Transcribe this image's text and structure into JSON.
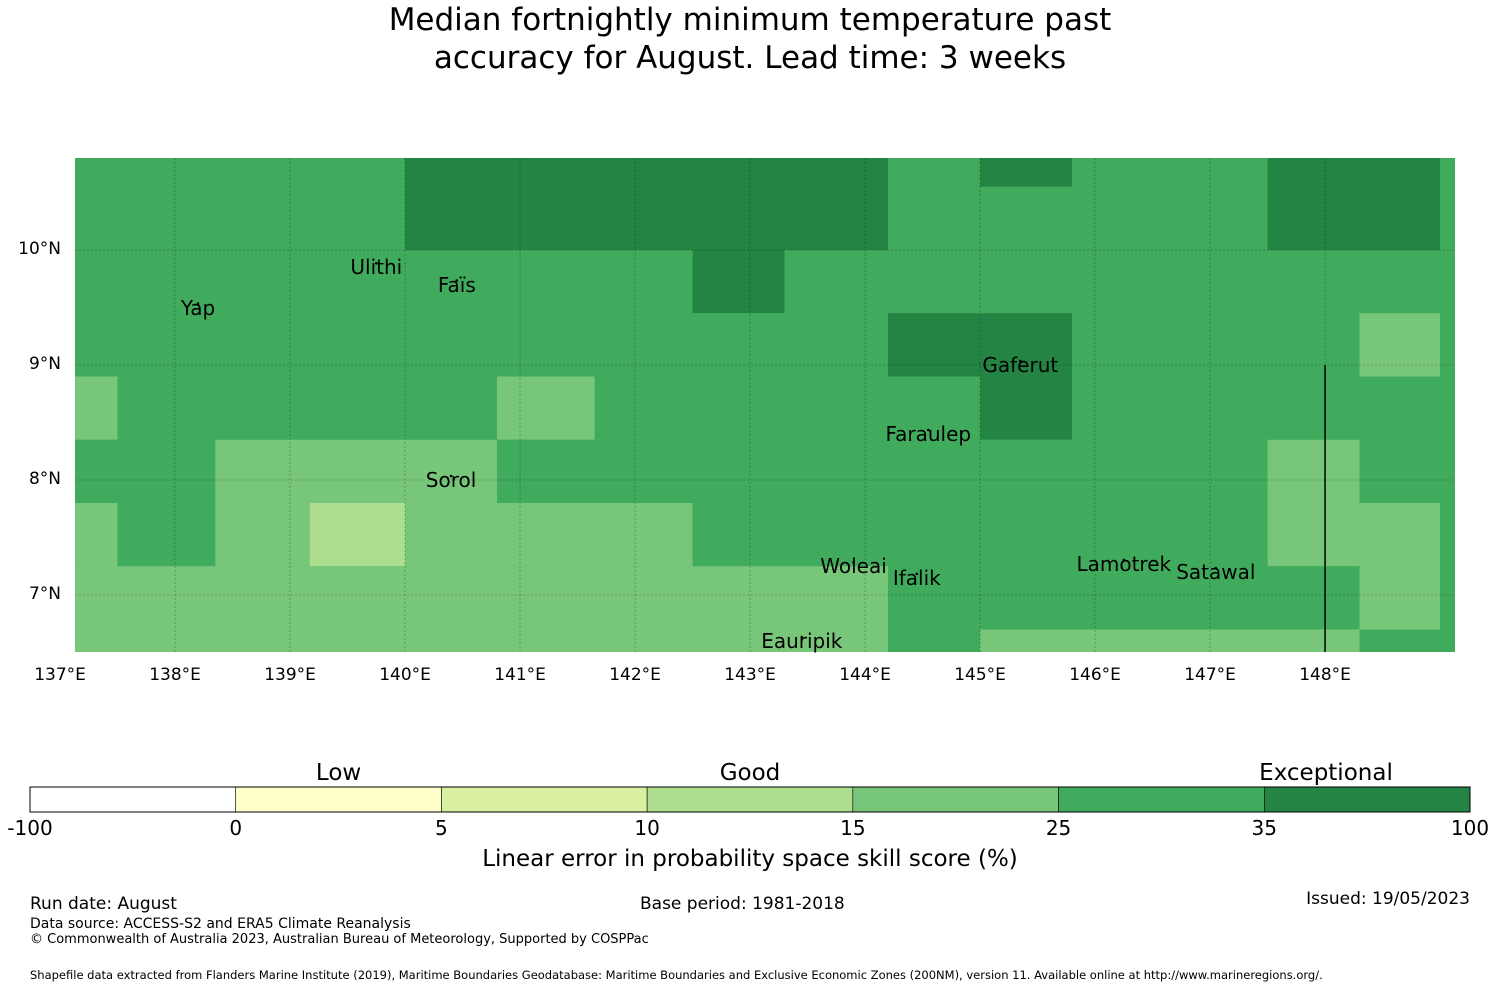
{
  "title_line1": "Median fortnightly minimum temperature past",
  "title_line2": "accuracy for August. Lead time: 3 weeks",
  "colors": {
    "c1": "#addd8e",
    "c2": "#78c679",
    "c3": "#41ab5d",
    "c4": "#238443",
    "gridline": "#000000",
    "ocean": "#ffffff"
  },
  "map": {
    "lon_range": [
      137.0,
      149.0
    ],
    "lat_range": [
      6.5,
      10.8
    ],
    "lat_labels": [
      "10°N",
      "9°N",
      "8°N",
      "7°N"
    ],
    "lon_labels": [
      "137°E",
      "138°E",
      "139°E",
      "140°E",
      "141°E",
      "142°E",
      "143°E",
      "144°E",
      "145°E",
      "146°E",
      "147°E",
      "148°E"
    ],
    "grid_lon": [
      137,
      138,
      139,
      140,
      141,
      142,
      143,
      144,
      145,
      146,
      147,
      148
    ],
    "grid_lat": [
      10,
      9,
      8,
      7
    ],
    "cells_note": "skill category per grid cell: 1 = 10–15%, 2 = 15–25%, 3 = 25–35%, 4 = 35–100%",
    "cells": [
      {
        "lon0": 137.0,
        "lon1": 140.0,
        "lat0": 10.0,
        "lat1": 10.8,
        "cat": 3
      },
      {
        "lon0": 140.0,
        "lon1": 144.2,
        "lat0": 10.0,
        "lat1": 10.8,
        "cat": 4
      },
      {
        "lon0": 144.2,
        "lon1": 145.0,
        "lat0": 10.0,
        "lat1": 10.8,
        "cat": 3
      },
      {
        "lon0": 145.0,
        "lon1": 145.8,
        "lat0": 10.55,
        "lat1": 10.8,
        "cat": 4
      },
      {
        "lon0": 145.0,
        "lon1": 147.5,
        "lat0": 10.0,
        "lat1": 10.55,
        "cat": 3
      },
      {
        "lon0": 145.8,
        "lon1": 147.5,
        "lat0": 10.55,
        "lat1": 10.8,
        "cat": 3
      },
      {
        "lon0": 147.5,
        "lon1": 149.0,
        "lat0": 10.0,
        "lat1": 10.8,
        "cat": 4
      },
      {
        "lon0": 137.0,
        "lon1": 142.5,
        "lat0": 9.45,
        "lat1": 10.0,
        "cat": 3
      },
      {
        "lon0": 142.5,
        "lon1": 143.3,
        "lat0": 9.45,
        "lat1": 10.0,
        "cat": 4
      },
      {
        "lon0": 143.3,
        "lon1": 149.0,
        "lat0": 9.45,
        "lat1": 10.0,
        "cat": 3
      },
      {
        "lon0": 137.0,
        "lon1": 144.2,
        "lat0": 8.9,
        "lat1": 9.45,
        "cat": 3
      },
      {
        "lon0": 144.2,
        "lon1": 145.8,
        "lat0": 8.9,
        "lat1": 9.45,
        "cat": 4
      },
      {
        "lon0": 145.8,
        "lon1": 148.3,
        "lat0": 8.9,
        "lat1": 9.45,
        "cat": 3
      },
      {
        "lon0": 148.3,
        "lon1": 149.0,
        "lat0": 8.9,
        "lat1": 9.45,
        "cat": 2
      },
      {
        "lon0": 137.0,
        "lon1": 137.5,
        "lat0": 8.35,
        "lat1": 8.9,
        "cat": 2
      },
      {
        "lon0": 137.5,
        "lon1": 140.8,
        "lat0": 8.35,
        "lat1": 8.9,
        "cat": 3
      },
      {
        "lon0": 140.8,
        "lon1": 141.65,
        "lat0": 8.35,
        "lat1": 8.9,
        "cat": 2
      },
      {
        "lon0": 141.65,
        "lon1": 145.0,
        "lat0": 8.35,
        "lat1": 8.9,
        "cat": 3
      },
      {
        "lon0": 145.0,
        "lon1": 145.8,
        "lat0": 8.35,
        "lat1": 8.9,
        "cat": 4
      },
      {
        "lon0": 145.8,
        "lon1": 149.0,
        "lat0": 8.35,
        "lat1": 8.9,
        "cat": 3
      },
      {
        "lon0": 137.0,
        "lon1": 138.35,
        "lat0": 7.8,
        "lat1": 8.35,
        "cat": 3
      },
      {
        "lon0": 138.35,
        "lon1": 140.8,
        "lat0": 7.8,
        "lat1": 8.35,
        "cat": 2
      },
      {
        "lon0": 140.8,
        "lon1": 147.5,
        "lat0": 7.8,
        "lat1": 8.35,
        "cat": 3
      },
      {
        "lon0": 147.5,
        "lon1": 148.3,
        "lat0": 7.8,
        "lat1": 8.35,
        "cat": 2
      },
      {
        "lon0": 148.3,
        "lon1": 149.0,
        "lat0": 7.8,
        "lat1": 8.35,
        "cat": 3
      },
      {
        "lon0": 137.0,
        "lon1": 137.5,
        "lat0": 7.25,
        "lat1": 7.8,
        "cat": 2
      },
      {
        "lon0": 137.5,
        "lon1": 138.35,
        "lat0": 7.25,
        "lat1": 7.8,
        "cat": 3
      },
      {
        "lon0": 138.35,
        "lon1": 139.17,
        "lat0": 7.25,
        "lat1": 7.8,
        "cat": 2
      },
      {
        "lon0": 139.17,
        "lon1": 140.0,
        "lat0": 7.25,
        "lat1": 7.8,
        "cat": 1
      },
      {
        "lon0": 140.0,
        "lon1": 142.5,
        "lat0": 7.25,
        "lat1": 7.8,
        "cat": 2
      },
      {
        "lon0": 142.5,
        "lon1": 147.5,
        "lat0": 7.25,
        "lat1": 7.8,
        "cat": 3
      },
      {
        "lon0": 147.5,
        "lon1": 149.0,
        "lat0": 7.25,
        "lat1": 7.8,
        "cat": 2
      },
      {
        "lon0": 137.0,
        "lon1": 144.2,
        "lat0": 6.5,
        "lat1": 7.25,
        "cat": 2
      },
      {
        "lon0": 144.2,
        "lon1": 148.3,
        "lat0": 6.7,
        "lat1": 7.25,
        "cat": 3
      },
      {
        "lon0": 144.2,
        "lon1": 145.0,
        "lat0": 6.5,
        "lat1": 6.7,
        "cat": 3
      },
      {
        "lon0": 145.0,
        "lon1": 148.3,
        "lat0": 6.5,
        "lat1": 6.7,
        "cat": 2
      },
      {
        "lon0": 148.3,
        "lon1": 149.0,
        "lat0": 6.7,
        "lat1": 7.25,
        "cat": 2
      },
      {
        "lon0": 148.3,
        "lon1": 149.0,
        "lat0": 6.5,
        "lat1": 6.7,
        "cat": 3
      }
    ],
    "boundary_line": {
      "lon": 148.0,
      "lat0": 6.5,
      "lat1": 9.0
    },
    "places": [
      {
        "name": "Ulithi",
        "lon": 139.75,
        "lat": 9.85
      },
      {
        "name": "Faïs",
        "lon": 140.45,
        "lat": 9.7
      },
      {
        "name": "Yap",
        "lon": 138.2,
        "lat": 9.5
      },
      {
        "name": "Gaferut",
        "lon": 145.35,
        "lat": 9.0
      },
      {
        "name": "Faraulep",
        "lon": 144.55,
        "lat": 8.4
      },
      {
        "name": "Sorol",
        "lon": 140.4,
        "lat": 8.0
      },
      {
        "name": "Woleai",
        "lon": 143.9,
        "lat": 7.25
      },
      {
        "name": "Ifalik",
        "lon": 144.45,
        "lat": 7.15
      },
      {
        "name": "Lamotrek",
        "lon": 146.25,
        "lat": 7.27
      },
      {
        "name": "Satawal",
        "lon": 147.05,
        "lat": 7.2
      },
      {
        "name": "Eauripik",
        "lon": 143.45,
        "lat": 6.6
      }
    ]
  },
  "colorbar": {
    "title": "Linear error in probability space skill score (%)",
    "ticks": [
      "-100",
      "0",
      "5",
      "10",
      "15",
      "25",
      "35",
      "100"
    ],
    "colors": [
      "#ffffff",
      "#ffffcc",
      "#d9f0a3",
      "#addd8e",
      "#78c679",
      "#41ab5d",
      "#238443"
    ],
    "categories": [
      "Low",
      "Good",
      "Exceptional"
    ]
  },
  "footer": {
    "run_date": "Run date: August",
    "base_period": "Base period: 1981-2018",
    "issued": "Issued: 19/05/2023",
    "data_source": "Data source: ACCESS-S2 and ERA5 Climate Reanalysis",
    "copyright": "© Commonwealth of Australia 2023, Australian Bureau of Meteorology, Supported by COSPPac",
    "shapefile": "Shapefile data extracted from Flanders Marine Institute (2019), Maritime Boundaries Geodatabase: Maritime Boundaries and Exclusive Economic Zones (200NM), version 11. Available online at http://www.marineregions.org/."
  }
}
